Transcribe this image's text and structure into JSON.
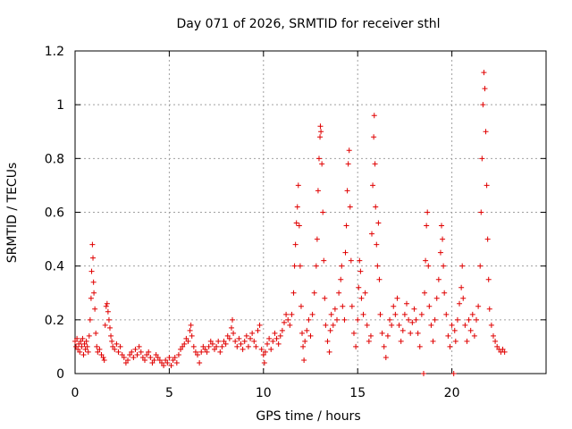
{
  "chart_data": {
    "type": "scatter",
    "title": "Day 071 of 2026, SRMTID for receiver sthl",
    "xlabel": "GPS time / hours",
    "ylabel": "SRMTID / TECUs",
    "xlim": [
      0,
      25
    ],
    "ylim": [
      0,
      1.2
    ],
    "xticks": [
      0,
      5,
      10,
      15,
      20
    ],
    "xtick_labels": [
      "0",
      "5",
      "10",
      "15",
      "20"
    ],
    "yticks": [
      0,
      0.2,
      0.4,
      0.6,
      0.8,
      1.0,
      1.2
    ],
    "ytick_labels": [
      "0",
      "0.2",
      "0.4",
      "0.6",
      "0.8",
      "1",
      "1.2"
    ],
    "grid": true,
    "marker": "+",
    "color": "#e00000",
    "series": [
      {
        "name": "sthl",
        "points": [
          [
            0.0,
            0.12
          ],
          [
            0.05,
            0.1
          ],
          [
            0.1,
            0.13
          ],
          [
            0.15,
            0.09
          ],
          [
            0.2,
            0.11
          ],
          [
            0.25,
            0.08
          ],
          [
            0.3,
            0.12
          ],
          [
            0.35,
            0.1
          ],
          [
            0.4,
            0.13
          ],
          [
            0.45,
            0.07
          ],
          [
            0.5,
            0.11
          ],
          [
            0.55,
            0.09
          ],
          [
            0.6,
            0.12
          ],
          [
            0.65,
            0.1
          ],
          [
            0.7,
            0.08
          ],
          [
            0.75,
            0.14
          ],
          [
            0.8,
            0.2
          ],
          [
            0.85,
            0.28
          ],
          [
            0.88,
            0.38
          ],
          [
            0.92,
            0.48
          ],
          [
            0.95,
            0.43
          ],
          [
            0.98,
            0.34
          ],
          [
            1.0,
            0.3
          ],
          [
            1.05,
            0.24
          ],
          [
            1.1,
            0.15
          ],
          [
            1.15,
            0.1
          ],
          [
            1.2,
            0.08
          ],
          [
            1.3,
            0.09
          ],
          [
            1.4,
            0.07
          ],
          [
            1.5,
            0.06
          ],
          [
            1.55,
            0.05
          ],
          [
            1.6,
            0.18
          ],
          [
            1.65,
            0.25
          ],
          [
            1.7,
            0.26
          ],
          [
            1.75,
            0.23
          ],
          [
            1.8,
            0.2
          ],
          [
            1.85,
            0.17
          ],
          [
            1.9,
            0.14
          ],
          [
            1.95,
            0.12
          ],
          [
            2.0,
            0.1
          ],
          [
            2.1,
            0.09
          ],
          [
            2.2,
            0.11
          ],
          [
            2.3,
            0.08
          ],
          [
            2.4,
            0.1
          ],
          [
            2.5,
            0.07
          ],
          [
            2.6,
            0.06
          ],
          [
            2.7,
            0.04
          ],
          [
            2.8,
            0.05
          ],
          [
            2.9,
            0.07
          ],
          [
            3.0,
            0.08
          ],
          [
            3.1,
            0.06
          ],
          [
            3.2,
            0.09
          ],
          [
            3.3,
            0.07
          ],
          [
            3.4,
            0.1
          ],
          [
            3.5,
            0.08
          ],
          [
            3.6,
            0.06
          ],
          [
            3.7,
            0.05
          ],
          [
            3.8,
            0.07
          ],
          [
            3.9,
            0.08
          ],
          [
            4.0,
            0.06
          ],
          [
            4.1,
            0.04
          ],
          [
            4.2,
            0.05
          ],
          [
            4.3,
            0.07
          ],
          [
            4.4,
            0.06
          ],
          [
            4.5,
            0.05
          ],
          [
            4.6,
            0.04
          ],
          [
            4.7,
            0.03
          ],
          [
            4.8,
            0.05
          ],
          [
            4.9,
            0.04
          ],
          [
            5.0,
            0.06
          ],
          [
            5.1,
            0.03
          ],
          [
            5.2,
            0.05
          ],
          [
            5.3,
            0.06
          ],
          [
            5.4,
            0.04
          ],
          [
            5.5,
            0.07
          ],
          [
            5.6,
            0.09
          ],
          [
            5.7,
            0.1
          ],
          [
            5.8,
            0.11
          ],
          [
            5.9,
            0.13
          ],
          [
            6.0,
            0.12
          ],
          [
            6.1,
            0.16
          ],
          [
            6.15,
            0.18
          ],
          [
            6.2,
            0.14
          ],
          [
            6.3,
            0.1
          ],
          [
            6.4,
            0.08
          ],
          [
            6.5,
            0.07
          ],
          [
            6.6,
            0.04
          ],
          [
            6.7,
            0.08
          ],
          [
            6.8,
            0.1
          ],
          [
            6.9,
            0.09
          ],
          [
            7.0,
            0.08
          ],
          [
            7.1,
            0.1
          ],
          [
            7.2,
            0.12
          ],
          [
            7.3,
            0.11
          ],
          [
            7.4,
            0.09
          ],
          [
            7.5,
            0.1
          ],
          [
            7.6,
            0.12
          ],
          [
            7.7,
            0.08
          ],
          [
            7.8,
            0.1
          ],
          [
            7.9,
            0.12
          ],
          [
            8.0,
            0.11
          ],
          [
            8.1,
            0.14
          ],
          [
            8.2,
            0.13
          ],
          [
            8.3,
            0.17
          ],
          [
            8.35,
            0.2
          ],
          [
            8.4,
            0.15
          ],
          [
            8.5,
            0.12
          ],
          [
            8.6,
            0.1
          ],
          [
            8.7,
            0.13
          ],
          [
            8.8,
            0.11
          ],
          [
            8.9,
            0.09
          ],
          [
            9.0,
            0.12
          ],
          [
            9.1,
            0.14
          ],
          [
            9.2,
            0.1
          ],
          [
            9.3,
            0.13
          ],
          [
            9.4,
            0.15
          ],
          [
            9.5,
            0.12
          ],
          [
            9.6,
            0.1
          ],
          [
            9.7,
            0.16
          ],
          [
            9.8,
            0.18
          ],
          [
            9.9,
            0.09
          ],
          [
            10.0,
            0.07
          ],
          [
            10.05,
            0.04
          ],
          [
            10.1,
            0.08
          ],
          [
            10.2,
            0.11
          ],
          [
            10.3,
            0.13
          ],
          [
            10.4,
            0.09
          ],
          [
            10.5,
            0.12
          ],
          [
            10.6,
            0.15
          ],
          [
            10.7,
            0.13
          ],
          [
            10.8,
            0.11
          ],
          [
            10.9,
            0.14
          ],
          [
            11.0,
            0.16
          ],
          [
            11.1,
            0.19
          ],
          [
            11.2,
            0.22
          ],
          [
            11.3,
            0.2
          ],
          [
            11.4,
            0.18
          ],
          [
            11.5,
            0.22
          ],
          [
            11.6,
            0.3
          ],
          [
            11.65,
            0.4
          ],
          [
            11.7,
            0.48
          ],
          [
            11.75,
            0.56
          ],
          [
            11.8,
            0.62
          ],
          [
            11.85,
            0.7
          ],
          [
            11.9,
            0.55
          ],
          [
            11.95,
            0.4
          ],
          [
            12.0,
            0.25
          ],
          [
            12.05,
            0.15
          ],
          [
            12.1,
            0.1
          ],
          [
            12.15,
            0.05
          ],
          [
            12.2,
            0.12
          ],
          [
            12.3,
            0.16
          ],
          [
            12.4,
            0.2
          ],
          [
            12.5,
            0.14
          ],
          [
            12.6,
            0.22
          ],
          [
            12.7,
            0.3
          ],
          [
            12.8,
            0.4
          ],
          [
            12.85,
            0.5
          ],
          [
            12.9,
            0.68
          ],
          [
            12.95,
            0.8
          ],
          [
            13.0,
            0.88
          ],
          [
            13.02,
            0.92
          ],
          [
            13.05,
            0.9
          ],
          [
            13.1,
            0.78
          ],
          [
            13.15,
            0.6
          ],
          [
            13.2,
            0.42
          ],
          [
            13.25,
            0.28
          ],
          [
            13.3,
            0.18
          ],
          [
            13.4,
            0.12
          ],
          [
            13.5,
            0.08
          ],
          [
            13.55,
            0.16
          ],
          [
            13.6,
            0.22
          ],
          [
            13.7,
            0.18
          ],
          [
            13.8,
            0.24
          ],
          [
            13.9,
            0.2
          ],
          [
            14.0,
            0.3
          ],
          [
            14.1,
            0.35
          ],
          [
            14.15,
            0.4
          ],
          [
            14.2,
            0.25
          ],
          [
            14.3,
            0.2
          ],
          [
            14.35,
            0.45
          ],
          [
            14.4,
            0.55
          ],
          [
            14.45,
            0.68
          ],
          [
            14.5,
            0.78
          ],
          [
            14.55,
            0.83
          ],
          [
            14.6,
            0.62
          ],
          [
            14.65,
            0.42
          ],
          [
            14.7,
            0.25
          ],
          [
            14.8,
            0.15
          ],
          [
            14.9,
            0.1
          ],
          [
            15.0,
            0.2
          ],
          [
            15.05,
            0.32
          ],
          [
            15.1,
            0.42
          ],
          [
            15.15,
            0.38
          ],
          [
            15.2,
            0.28
          ],
          [
            15.3,
            0.22
          ],
          [
            15.4,
            0.3
          ],
          [
            15.5,
            0.18
          ],
          [
            15.6,
            0.12
          ],
          [
            15.7,
            0.14
          ],
          [
            15.75,
            0.52
          ],
          [
            15.8,
            0.7
          ],
          [
            15.85,
            0.88
          ],
          [
            15.88,
            0.96
          ],
          [
            15.92,
            0.78
          ],
          [
            15.95,
            0.62
          ],
          [
            16.0,
            0.48
          ],
          [
            16.05,
            0.4
          ],
          [
            16.1,
            0.56
          ],
          [
            16.15,
            0.35
          ],
          [
            16.2,
            0.22
          ],
          [
            16.3,
            0.15
          ],
          [
            16.4,
            0.1
          ],
          [
            16.5,
            0.06
          ],
          [
            16.6,
            0.14
          ],
          [
            16.7,
            0.2
          ],
          [
            16.8,
            0.18
          ],
          [
            16.9,
            0.25
          ],
          [
            17.0,
            0.22
          ],
          [
            17.1,
            0.28
          ],
          [
            17.2,
            0.18
          ],
          [
            17.3,
            0.12
          ],
          [
            17.4,
            0.16
          ],
          [
            17.5,
            0.22
          ],
          [
            17.6,
            0.26
          ],
          [
            17.7,
            0.2
          ],
          [
            17.8,
            0.15
          ],
          [
            17.9,
            0.19
          ],
          [
            18.0,
            0.24
          ],
          [
            18.1,
            0.2
          ],
          [
            18.2,
            0.15
          ],
          [
            18.3,
            0.1
          ],
          [
            18.4,
            0.22
          ],
          [
            18.5,
            0.0
          ],
          [
            18.55,
            0.3
          ],
          [
            18.6,
            0.42
          ],
          [
            18.65,
            0.55
          ],
          [
            18.7,
            0.6
          ],
          [
            18.75,
            0.4
          ],
          [
            18.8,
            0.25
          ],
          [
            18.9,
            0.18
          ],
          [
            19.0,
            0.12
          ],
          [
            19.1,
            0.2
          ],
          [
            19.2,
            0.28
          ],
          [
            19.3,
            0.35
          ],
          [
            19.4,
            0.45
          ],
          [
            19.45,
            0.55
          ],
          [
            19.5,
            0.5
          ],
          [
            19.55,
            0.4
          ],
          [
            19.6,
            0.3
          ],
          [
            19.7,
            0.22
          ],
          [
            19.8,
            0.14
          ],
          [
            19.9,
            0.1
          ],
          [
            20.0,
            0.18
          ],
          [
            20.1,
            0.0
          ],
          [
            20.15,
            0.16
          ],
          [
            20.2,
            0.12
          ],
          [
            20.3,
            0.2
          ],
          [
            20.4,
            0.26
          ],
          [
            20.5,
            0.32
          ],
          [
            20.55,
            0.4
          ],
          [
            20.6,
            0.28
          ],
          [
            20.7,
            0.18
          ],
          [
            20.8,
            0.12
          ],
          [
            20.9,
            0.2
          ],
          [
            21.0,
            0.16
          ],
          [
            21.1,
            0.22
          ],
          [
            21.2,
            0.14
          ],
          [
            21.3,
            0.2
          ],
          [
            21.4,
            0.25
          ],
          [
            21.5,
            0.4
          ],
          [
            21.55,
            0.6
          ],
          [
            21.6,
            0.8
          ],
          [
            21.65,
            1.0
          ],
          [
            21.7,
            1.12
          ],
          [
            21.75,
            1.06
          ],
          [
            21.8,
            0.9
          ],
          [
            21.85,
            0.7
          ],
          [
            21.9,
            0.5
          ],
          [
            21.95,
            0.35
          ],
          [
            22.0,
            0.24
          ],
          [
            22.1,
            0.18
          ],
          [
            22.2,
            0.14
          ],
          [
            22.3,
            0.12
          ],
          [
            22.4,
            0.1
          ],
          [
            22.5,
            0.09
          ],
          [
            22.6,
            0.08
          ],
          [
            22.7,
            0.09
          ],
          [
            22.8,
            0.08
          ]
        ]
      }
    ]
  }
}
